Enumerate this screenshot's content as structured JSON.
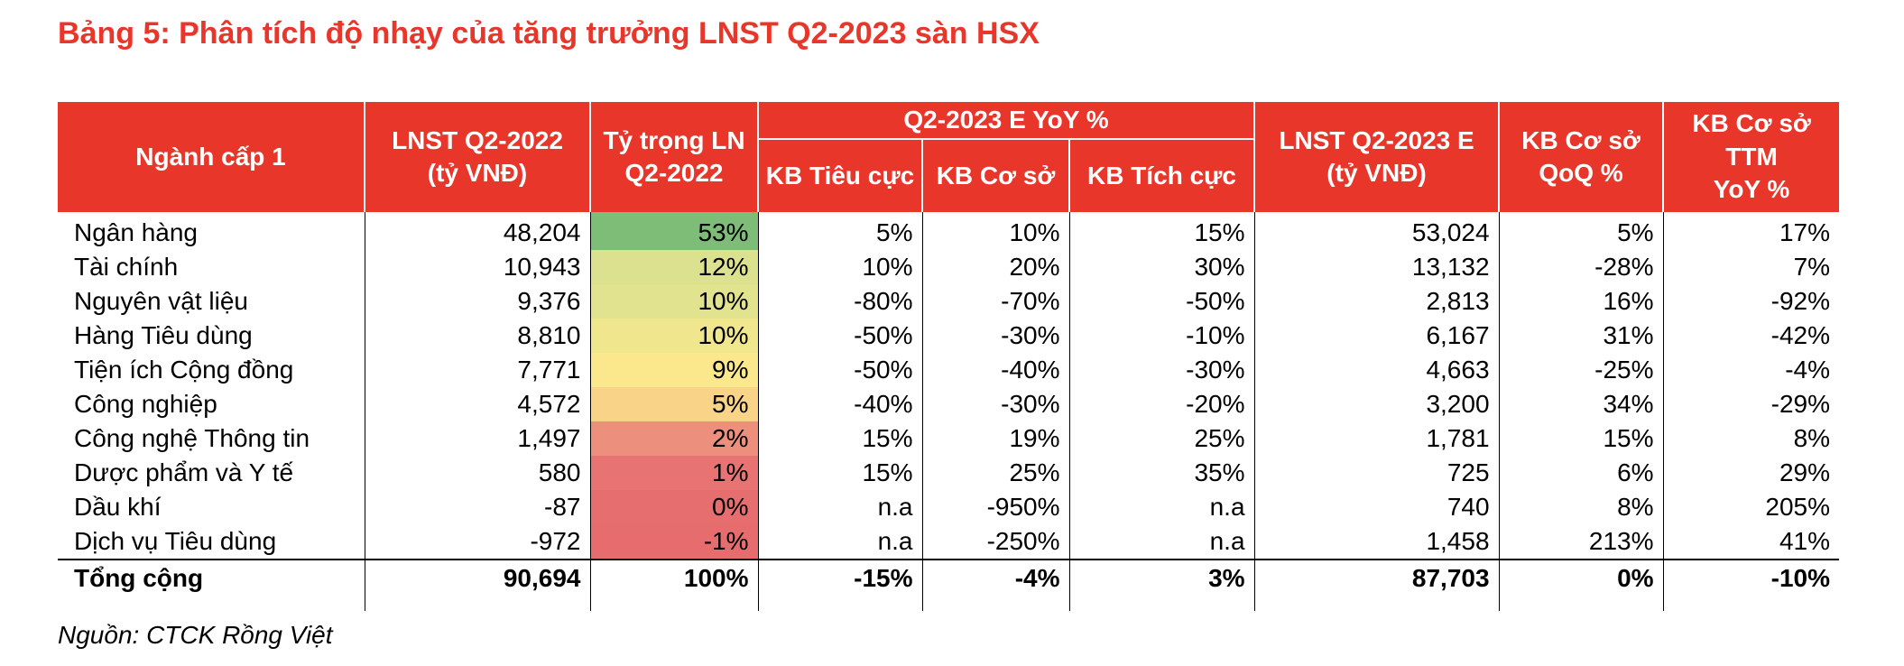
{
  "title": "Bảng 5: Phân tích độ nhạy của tăng trưởng LNST Q2-2023 sàn HSX",
  "headers": {
    "sector": "Ngành cấp 1",
    "lnst_2022": [
      "LNST Q2-2022",
      "(tỷ VNĐ)"
    ],
    "weight": [
      "Tỷ trọng LN",
      "Q2-2022"
    ],
    "group": "Q2-2023 E YoY %",
    "bear": "KB Tiêu cực",
    "base": "KB Cơ sở",
    "bull": "KB Tích cực",
    "lnst_2023e": [
      "LNST Q2-2023 E",
      "(tỷ VNĐ)"
    ],
    "qoq": [
      "KB Cơ sở",
      "QoQ %"
    ],
    "ttm": [
      "KB Cơ sở",
      "TTM",
      "YoY %"
    ]
  },
  "rows": [
    {
      "sector": "Ngân hàng",
      "lnst_2022": "48,204",
      "weight": "53%",
      "weight_color": "#7dbd78",
      "bear": "5%",
      "base": "10%",
      "bull": "15%",
      "lnst_2023e": "53,024",
      "qoq": "5%",
      "ttm": "17%"
    },
    {
      "sector": "Tài chính",
      "lnst_2022": "10,943",
      "weight": "12%",
      "weight_color": "#dbe18f",
      "bear": "10%",
      "base": "20%",
      "bull": "30%",
      "lnst_2023e": "13,132",
      "qoq": "-28%",
      "ttm": "7%"
    },
    {
      "sector": "Nguyên vật liệu",
      "lnst_2022": "9,376",
      "weight": "10%",
      "weight_color": "#e2e38e",
      "bear": "-80%",
      "base": "-70%",
      "bull": "-50%",
      "lnst_2023e": "2,813",
      "qoq": "16%",
      "ttm": "-92%"
    },
    {
      "sector": "Hàng Tiêu dùng",
      "lnst_2022": "8,810",
      "weight": "10%",
      "weight_color": "#f0e68e",
      "bear": "-50%",
      "base": "-30%",
      "bull": "-10%",
      "lnst_2023e": "6,167",
      "qoq": "31%",
      "ttm": "-42%"
    },
    {
      "sector": "Tiện ích Cộng đồng",
      "lnst_2022": "7,771",
      "weight": "9%",
      "weight_color": "#fbe88c",
      "bear": "-50%",
      "base": "-40%",
      "bull": "-30%",
      "lnst_2023e": "4,663",
      "qoq": "-25%",
      "ttm": "-4%"
    },
    {
      "sector": "Công nghiệp",
      "lnst_2022": "4,572",
      "weight": "5%",
      "weight_color": "#f8d388",
      "bear": "-40%",
      "base": "-30%",
      "bull": "-20%",
      "lnst_2023e": "3,200",
      "qoq": "34%",
      "ttm": "-29%"
    },
    {
      "sector": "Công nghệ Thông tin",
      "lnst_2022": "1,497",
      "weight": "2%",
      "weight_color": "#ec8f7c",
      "bear": "15%",
      "base": "19%",
      "bull": "25%",
      "lnst_2023e": "1,781",
      "qoq": "15%",
      "ttm": "8%"
    },
    {
      "sector": "Dược phẩm và Y tế",
      "lnst_2022": "580",
      "weight": "1%",
      "weight_color": "#e77373",
      "bear": "15%",
      "base": "25%",
      "bull": "35%",
      "lnst_2023e": "725",
      "qoq": "6%",
      "ttm": "29%"
    },
    {
      "sector": "Dầu khí",
      "lnst_2022": "-87",
      "weight": "0%",
      "weight_color": "#e76e6f",
      "bear": "n.a",
      "base": "-950%",
      "bull": "n.a",
      "lnst_2023e": "740",
      "qoq": "8%",
      "ttm": "205%"
    },
    {
      "sector": "Dịch vụ Tiêu dùng",
      "lnst_2022": "-972",
      "weight": "-1%",
      "weight_color": "#e76c6d",
      "bear": "n.a",
      "base": "-250%",
      "bull": "n.a",
      "lnst_2023e": "1,458",
      "qoq": "213%",
      "ttm": "41%"
    }
  ],
  "total": {
    "sector": "Tổng cộng",
    "lnst_2022": "90,694",
    "weight": "100%",
    "bear": "-15%",
    "base": "-4%",
    "bull": "3%",
    "lnst_2023e": "87,703",
    "qoq": "0%",
    "ttm": "-10%"
  },
  "source": "Nguồn: CTCK Rồng Việt"
}
